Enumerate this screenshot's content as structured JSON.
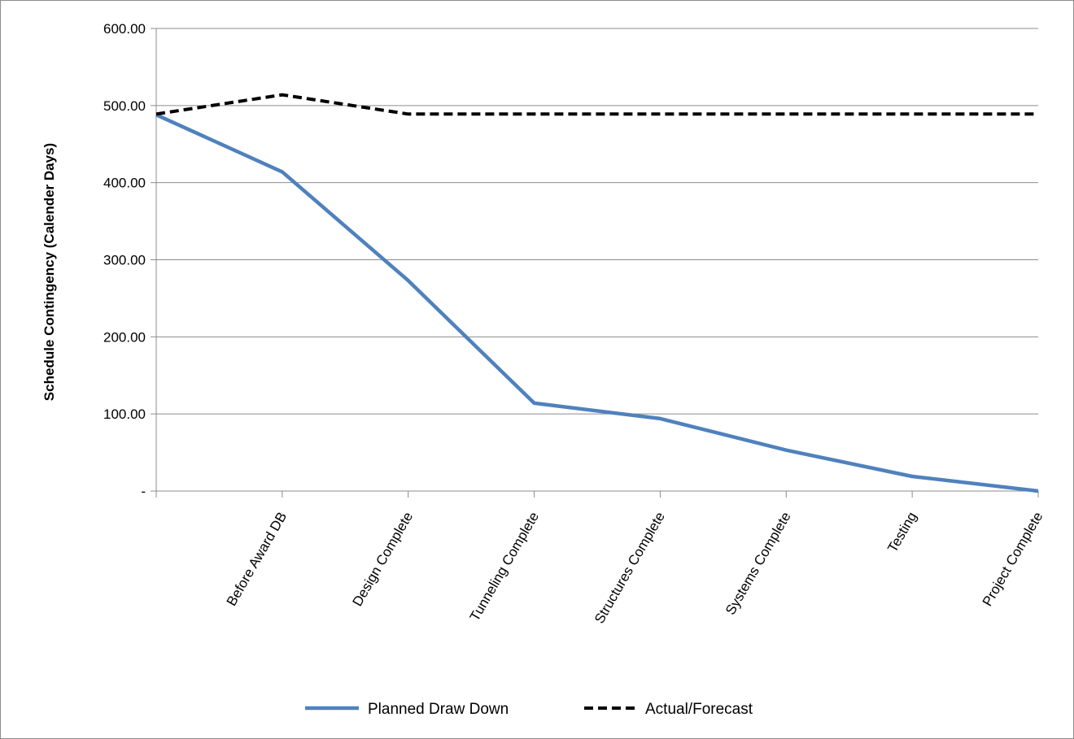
{
  "chart_data": {
    "type": "line",
    "title": "",
    "xlabel": "",
    "ylabel": "Schedule Contingency (Calender Days)",
    "ylim": [
      0,
      600
    ],
    "yticks": [
      0,
      100,
      200,
      300,
      400,
      500,
      600
    ],
    "ytick_labels": [
      "-",
      "100.00",
      "200.00",
      "300.00",
      "400.00",
      "500.00",
      "600.00"
    ],
    "categories": [
      "",
      "Before Award DB",
      "Design Complete",
      "Tunneling Complete",
      "Structures Complete",
      "Systems Complete",
      "Testing",
      "Project Complete"
    ],
    "grid": true,
    "legend_position": "bottom",
    "series": [
      {
        "name": "Planned Draw Down",
        "values": [
          488,
          414,
          273,
          114,
          94,
          53,
          19,
          0
        ],
        "color": "#4f81bd",
        "style": "solid"
      },
      {
        "name": "Actual/Forecast",
        "values": [
          489,
          514,
          489,
          489,
          489,
          489,
          489,
          489
        ],
        "color": "#000000",
        "style": "dashed"
      }
    ]
  }
}
